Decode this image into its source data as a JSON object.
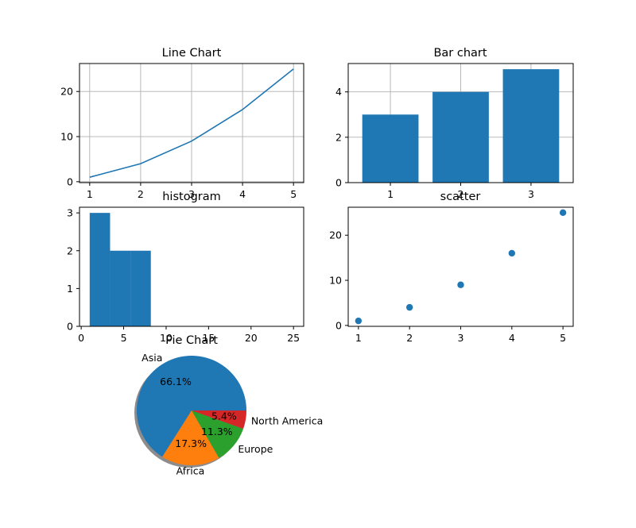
{
  "chart_data": [
    {
      "type": "line",
      "title": "Line Chart",
      "x": [
        1,
        2,
        3,
        4,
        5
      ],
      "y": [
        1,
        4,
        9,
        16,
        25
      ],
      "color": "#1f77b4",
      "xlim": [
        0.8,
        5.2
      ],
      "ylim": [
        -0.2,
        26.2
      ],
      "xticks": [
        1,
        2,
        3,
        4,
        5
      ],
      "yticks": [
        0,
        10,
        20
      ],
      "grid": true
    },
    {
      "type": "bar",
      "title": "Bar chart",
      "categories": [
        1,
        2,
        3
      ],
      "values": [
        3,
        4,
        5
      ],
      "color": "#1f77b4",
      "xlim": [
        0.4,
        3.6
      ],
      "ylim": [
        0,
        5.25
      ],
      "xticks": [
        1,
        2,
        3
      ],
      "yticks": [
        0,
        2,
        4
      ],
      "grid": true
    },
    {
      "type": "bar",
      "title": "histogram",
      "bins": [
        [
          1.0,
          3.4,
          3
        ],
        [
          3.4,
          5.8,
          2
        ],
        [
          5.8,
          8.2,
          2
        ],
        [
          8.2,
          10.6,
          0
        ],
        [
          10.6,
          13.0,
          0
        ],
        [
          13.0,
          15.4,
          0
        ],
        [
          15.4,
          17.8,
          0
        ],
        [
          17.8,
          20.2,
          0
        ],
        [
          20.2,
          22.6,
          0
        ],
        [
          22.6,
          25.0,
          0
        ]
      ],
      "color": "#1f77b4",
      "xlim": [
        -0.2,
        26.2
      ],
      "ylim": [
        0,
        3.15
      ],
      "xticks": [
        0,
        5,
        10,
        15,
        20,
        25
      ],
      "yticks": [
        0,
        1,
        2,
        3
      ],
      "grid": false
    },
    {
      "type": "scatter",
      "title": "scatter",
      "x": [
        1,
        2,
        3,
        4,
        5
      ],
      "y": [
        1,
        4,
        9,
        16,
        25
      ],
      "color": "#1f77b4",
      "xlim": [
        0.8,
        5.2
      ],
      "ylim": [
        -0.2,
        26.2
      ],
      "xticks": [
        1,
        2,
        3,
        4,
        5
      ],
      "yticks": [
        0,
        10,
        20
      ],
      "grid": false
    },
    {
      "type": "pie",
      "title": "Pie Chart",
      "labels": [
        "Asia",
        "Africa",
        "Europe",
        "North America"
      ],
      "percent_labels": [
        "66.1%",
        "17.3%",
        "11.3%",
        "5.4%"
      ],
      "values": [
        66.1,
        17.3,
        11.3,
        5.4
      ],
      "colors": [
        "#1f77b4",
        "#ff7f0e",
        "#2ca02c",
        "#d62728"
      ],
      "shadow": true,
      "startangle": 0
    }
  ]
}
